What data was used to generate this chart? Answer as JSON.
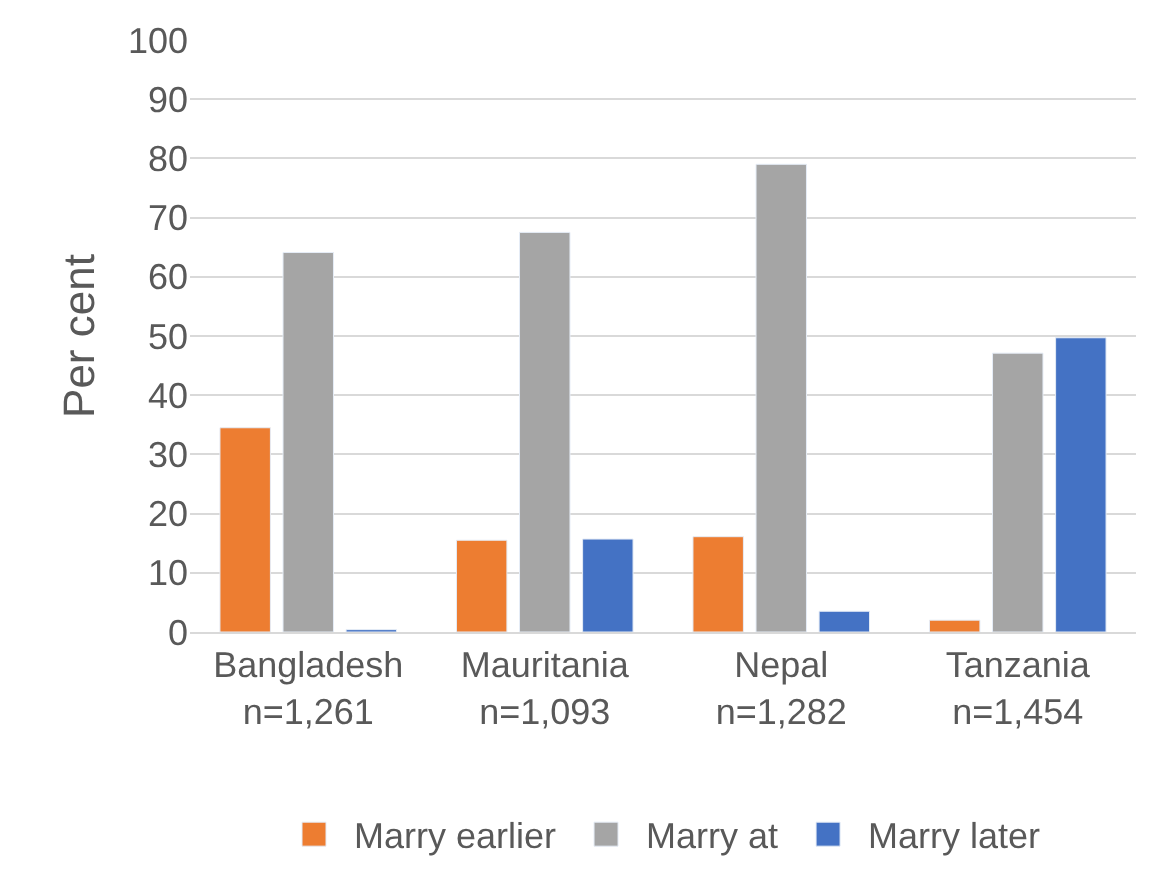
{
  "chart_data": {
    "type": "bar",
    "ylabel": "Per cent",
    "categories": [
      "Bangladesh\nn=1,261",
      "Mauritania\nn=1,093",
      "Nepal\nn=1,282",
      "Tanzania\nn=1,454"
    ],
    "series": [
      {
        "name": "Marry earlier",
        "color": "#ed7d31",
        "values": [
          34.5,
          15.5,
          16.1,
          2.0
        ]
      },
      {
        "name": "Marry at",
        "color": "#a5a5a5",
        "values": [
          64.1,
          67.5,
          79.0,
          47.1
        ]
      },
      {
        "name": "Marry later",
        "color": "#4472c4",
        "values": [
          0.4,
          15.7,
          3.5,
          49.7
        ]
      }
    ],
    "ylim": [
      0,
      100
    ],
    "yticks": [
      0,
      10,
      20,
      30,
      40,
      50,
      60,
      70,
      80,
      90,
      100
    ],
    "grid": "y",
    "legend": "bottom"
  }
}
